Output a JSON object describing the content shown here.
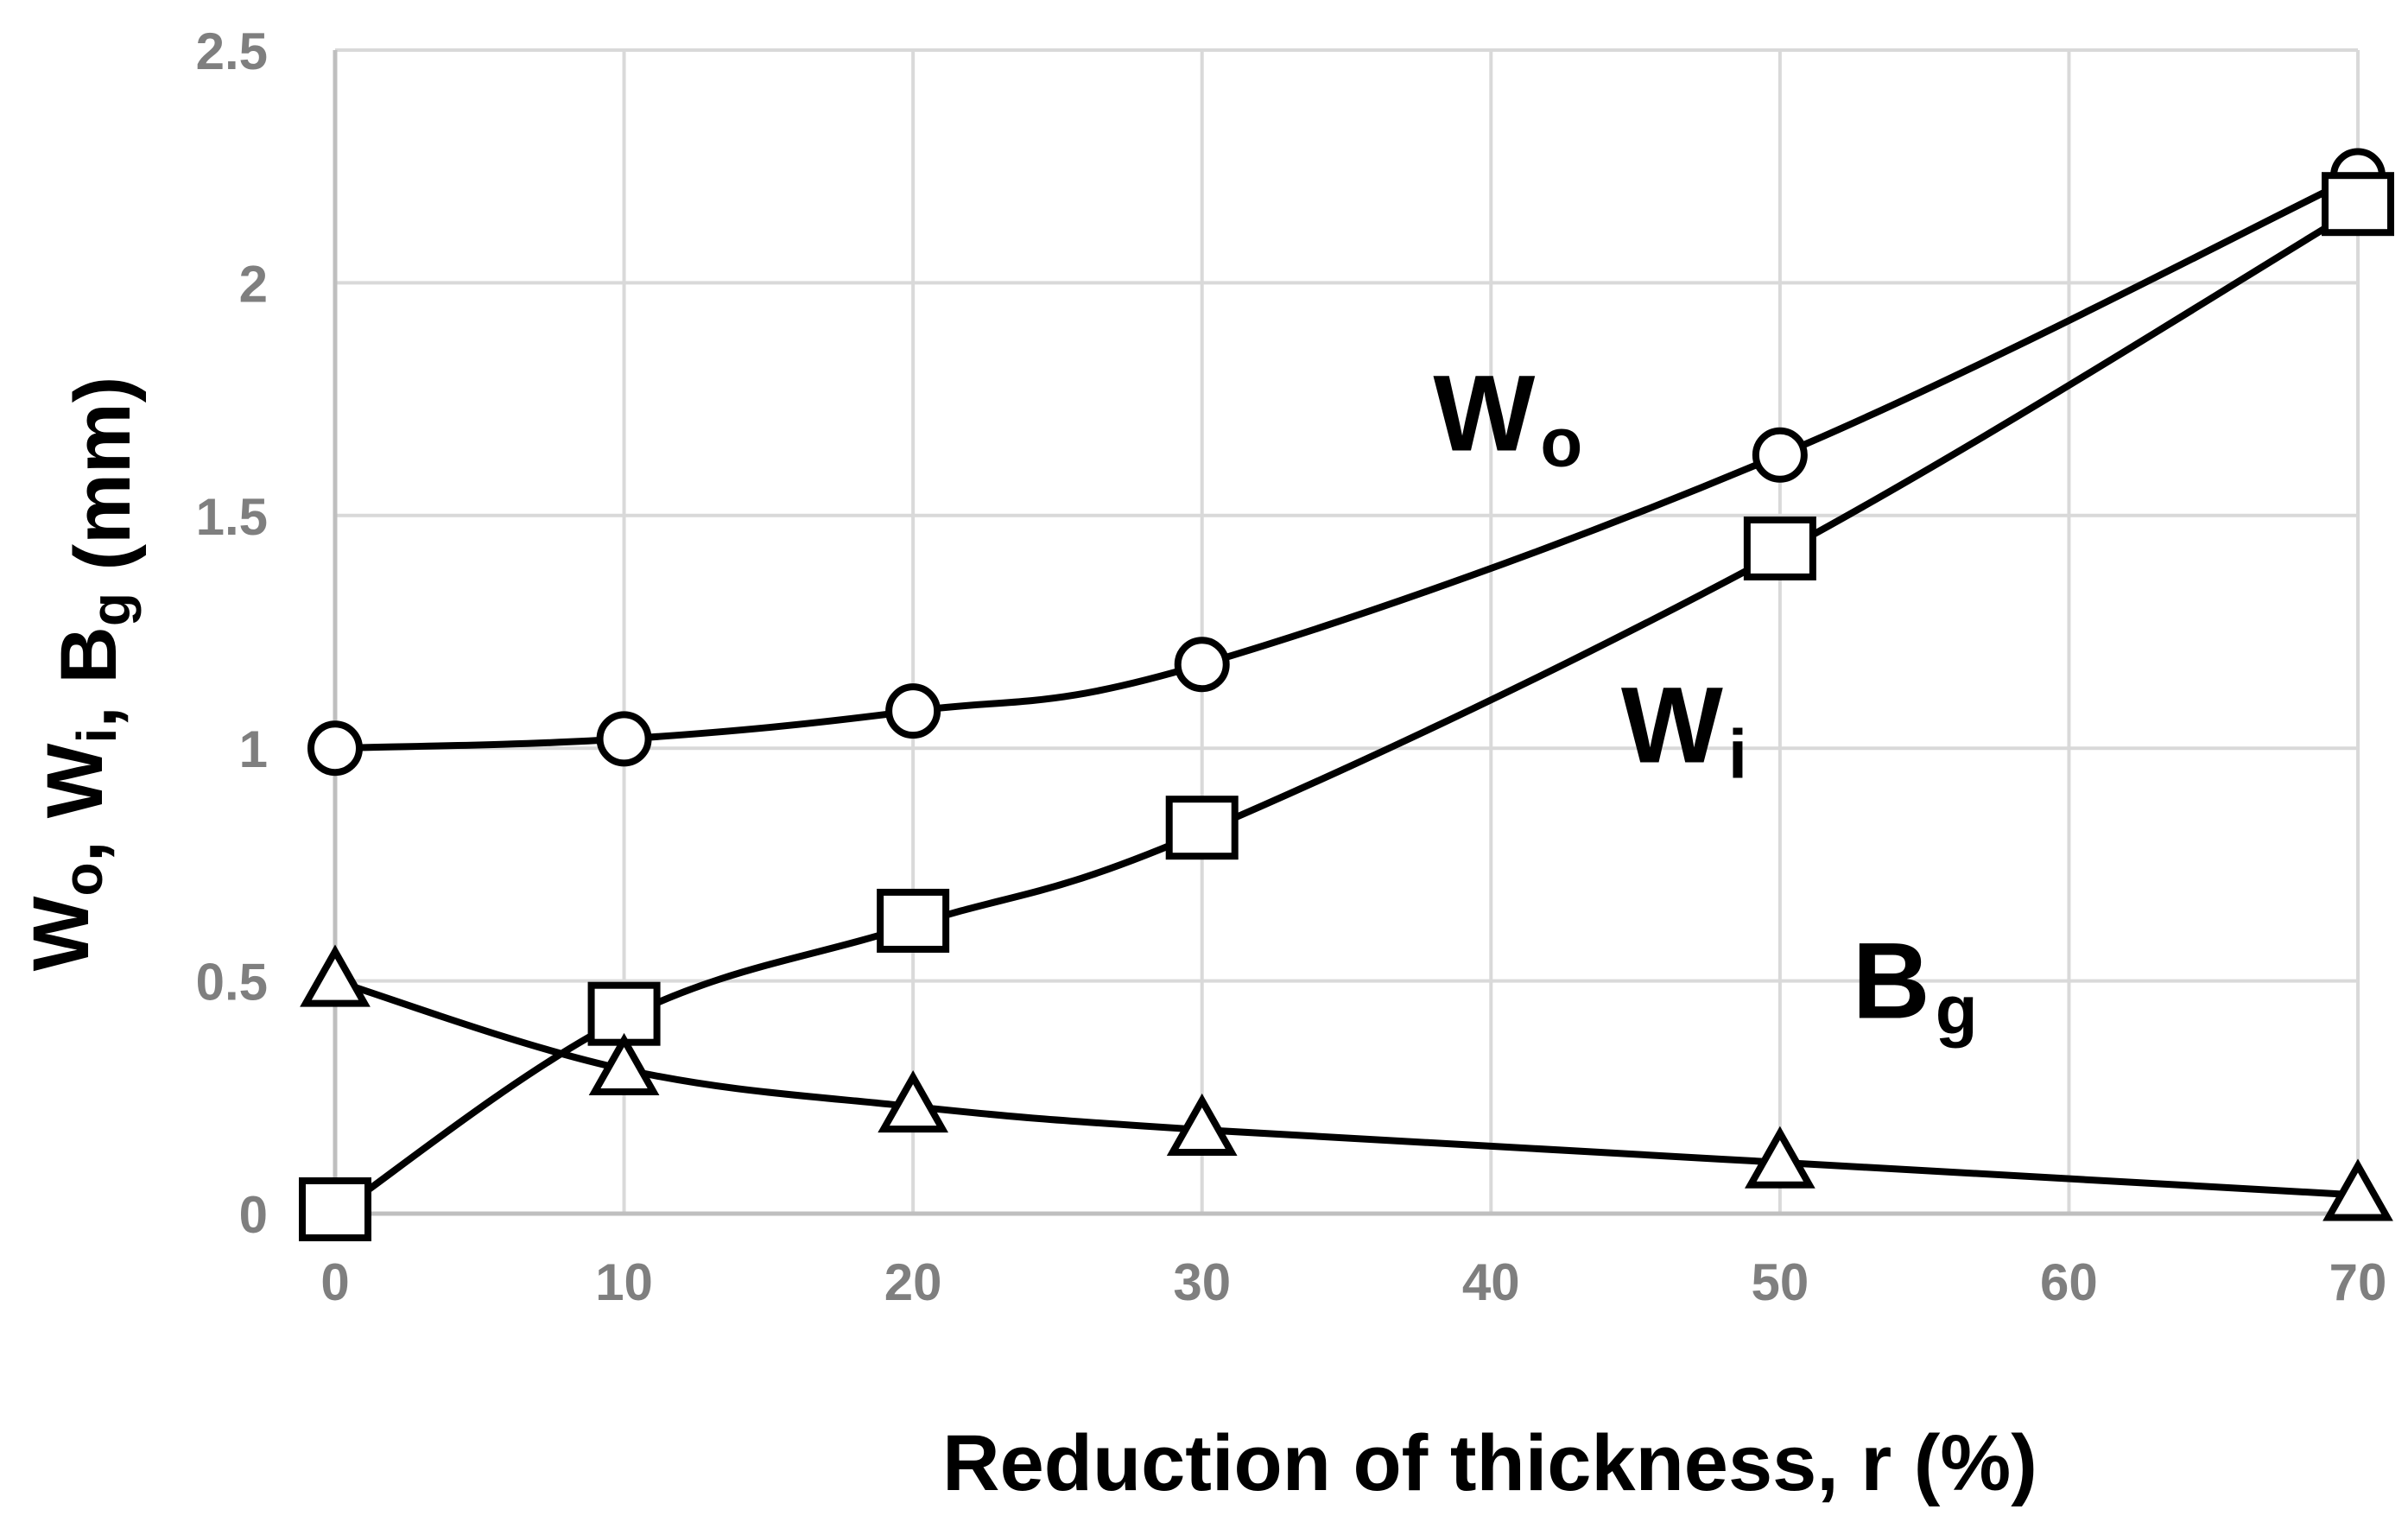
{
  "chart_data": {
    "type": "line",
    "title": "",
    "xlabel": "Reduction of thickness, r (%)",
    "ylabel": {
      "parts": [
        {
          "text": "W",
          "sub": "o"
        },
        {
          "text": ", W",
          "sub": "i"
        },
        {
          "text": ", B",
          "sub": "g"
        },
        {
          "text": " (mm)",
          "sub": ""
        }
      ]
    },
    "xlim": [
      0,
      70
    ],
    "ylim": [
      0,
      2.5
    ],
    "x_ticks": [
      0,
      10,
      20,
      30,
      40,
      50,
      60,
      70
    ],
    "y_ticks": [
      0,
      0.5,
      1,
      1.5,
      2,
      2.5
    ],
    "x_tick_labels": [
      "0",
      "10",
      "20",
      "30",
      "40",
      "50",
      "60",
      "70"
    ],
    "y_tick_labels": [
      "0",
      "0.5",
      "1",
      "1.5",
      "2",
      "2.5"
    ],
    "grid": true,
    "colors": {
      "line": "#000000",
      "grid": "#d9d9d9",
      "tick_text": "#7f7f7f",
      "marker_fill": "#ffffff"
    },
    "series": [
      {
        "name": "Wo",
        "label_main": "W",
        "label_sub": "o",
        "marker": "circle",
        "x": [
          0,
          10,
          20,
          30,
          50,
          70
        ],
        "values": [
          1.0,
          1.02,
          1.08,
          1.18,
          1.63,
          2.23
        ],
        "label_anchor": {
          "x": 38,
          "y": 1.64
        }
      },
      {
        "name": "Wi",
        "label_main": "W",
        "label_sub": "i",
        "marker": "square",
        "x": [
          0,
          10,
          20,
          30,
          50,
          70
        ],
        "values": [
          0.0,
          0.42,
          0.62,
          0.82,
          1.42,
          2.16
        ],
        "label_anchor": {
          "x": 44.5,
          "y": 0.97
        }
      },
      {
        "name": "Bg",
        "label_main": "B",
        "label_sub": "g",
        "marker": "triangle",
        "x": [
          0,
          10,
          20,
          30,
          50,
          70
        ],
        "values": [
          0.5,
          0.31,
          0.23,
          0.18,
          0.11,
          0.04
        ],
        "label_anchor": {
          "x": 52.5,
          "y": 0.42
        }
      }
    ]
  }
}
